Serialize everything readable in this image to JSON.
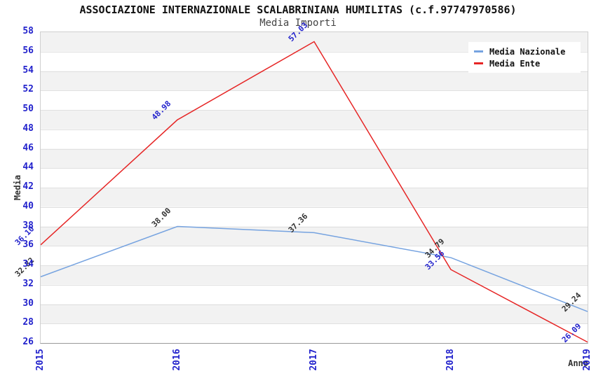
{
  "header": {
    "title": "ASSOCIAZIONE INTERNAZIONALE SCALABRINIANA HUMILITAS (c.f.97747970586)",
    "subtitle": "Media Importi"
  },
  "chart_data": {
    "type": "line",
    "title": "ASSOCIAZIONE INTERNAZIONALE SCALABRINIANA HUMILITAS (c.f.97747970586)",
    "subtitle": "Media Importi",
    "xlabel": "Anno",
    "ylabel": "Media",
    "categories": [
      "2015",
      "2016",
      "2017",
      "2018",
      "2019"
    ],
    "series": [
      {
        "name": "Media Nazionale",
        "values": [
          32.82,
          38.0,
          37.36,
          34.79,
          29.24
        ],
        "color": "#76a3e0",
        "label_color": "#333333"
      },
      {
        "name": "Media Ente",
        "values": [
          36.1,
          48.98,
          57.03,
          33.56,
          26.09
        ],
        "color": "#e62525",
        "label_color": "#2222cc"
      }
    ],
    "ylim": [
      26,
      58
    ],
    "ytick_step": 2,
    "grid": true,
    "legend_position": "top-right",
    "styles": {
      "band_color": "#f2f2f2",
      "grid_color": "#e0e0e0",
      "tick_color": "#2222cc",
      "axis_text_color": "#333333",
      "plot_border": "#cfcfcf"
    }
  }
}
